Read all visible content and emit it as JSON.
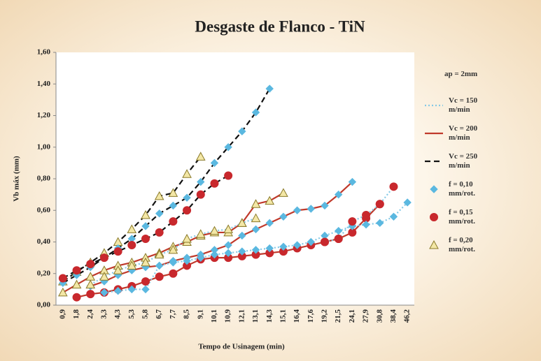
{
  "chart_data": {
    "type": "line",
    "title": "Desgaste de Flanco - TiN",
    "x_label": "Tempo de Usinagem (min)",
    "y_label": "Vb máx (mm)",
    "categories": [
      "0,9",
      "1,8",
      "2,4",
      "3,3",
      "4,3",
      "5,3",
      "5,8",
      "6,7",
      "7,7",
      "8,5",
      "9,1",
      "10,1",
      "10,9",
      "12,1",
      "13,1",
      "14,3",
      "15,1",
      "16,4",
      "17,6",
      "19,2",
      "21,5",
      "24,1",
      "27,9",
      "30,8",
      "38,4",
      "46,2"
    ],
    "ylim": [
      0,
      1.6
    ],
    "yticks": [
      {
        "value": 0,
        "label": "0,00"
      },
      {
        "value": 0.2,
        "label": "0,20"
      },
      {
        "value": 0.4,
        "label": "0,40"
      },
      {
        "value": 0.6,
        "label": "0,60"
      },
      {
        "value": 0.8,
        "label": "0,80"
      },
      {
        "value": 1.0,
        "label": "1,00"
      },
      {
        "value": 1.2,
        "label": "1,20"
      },
      {
        "value": 1.4,
        "label": "1,40"
      },
      {
        "value": 1.6,
        "label": "1,60"
      }
    ],
    "legend_title": "ap = 2mm",
    "legend_position": "right",
    "legend": [
      {
        "name": "Vc = 150 m/min",
        "line": "dotted",
        "color": "#86c9e6"
      },
      {
        "name": "Vc = 200 m/min",
        "line": "solid",
        "color": "#c0392b"
      },
      {
        "name": "Vc = 250 m/min",
        "line": "dashed",
        "color": "#111111"
      },
      {
        "name": "f = 0,10 mm/rot.",
        "marker": "diamond",
        "color": "#5bb8e0"
      },
      {
        "name": "f = 0,15 mm/rot.",
        "marker": "circle",
        "color": "#c8282d"
      },
      {
        "name": "f = 0,20 mm/rot.",
        "marker": "triangle",
        "color": "#f3e7a6"
      }
    ],
    "curves": [
      {
        "line": 2,
        "marker": 5,
        "values": [
          0.15,
          0.21,
          0.27,
          0.33,
          0.4,
          0.48,
          0.57,
          0.69,
          0.71,
          0.83,
          0.94,
          null,
          null,
          null,
          null,
          null,
          null,
          null,
          null,
          null,
          null,
          null,
          null,
          null,
          null,
          null
        ]
      },
      {
        "line": 2,
        "marker": 3,
        "values": [
          0.14,
          0.19,
          0.24,
          0.3,
          0.36,
          0.42,
          0.5,
          0.58,
          0.63,
          0.68,
          0.78,
          0.9,
          1.0,
          1.1,
          1.22,
          1.37,
          null,
          null,
          null,
          null,
          null,
          null,
          null,
          null,
          null,
          null
        ]
      },
      {
        "line": 2,
        "marker": 4,
        "values": [
          0.17,
          0.22,
          0.26,
          0.3,
          0.34,
          0.38,
          0.42,
          0.46,
          0.53,
          0.6,
          0.7,
          0.77,
          0.82,
          null,
          null,
          null,
          null,
          null,
          null,
          null,
          null,
          null,
          null,
          null,
          null,
          null
        ]
      },
      {
        "line": 1,
        "marker": 5,
        "values": [
          0.08,
          0.13,
          0.18,
          0.22,
          0.25,
          0.27,
          0.3,
          0.33,
          0.37,
          0.4,
          0.44,
          0.46,
          0.46,
          0.52,
          0.64,
          0.66,
          0.71,
          null,
          null,
          null,
          null,
          null,
          null,
          null,
          null,
          null
        ]
      },
      {
        "line": 1,
        "marker": 3,
        "values": [
          null,
          null,
          0.12,
          0.15,
          0.19,
          0.22,
          0.24,
          0.25,
          0.28,
          0.3,
          0.32,
          0.35,
          0.38,
          0.44,
          0.48,
          0.52,
          0.56,
          0.6,
          0.61,
          0.63,
          0.7,
          0.78,
          null,
          null,
          null,
          null
        ]
      },
      {
        "line": 1,
        "marker": 4,
        "values": [
          null,
          0.05,
          0.07,
          0.08,
          0.1,
          0.12,
          0.15,
          0.18,
          0.2,
          0.25,
          0.29,
          0.3,
          0.3,
          0.31,
          0.32,
          0.33,
          0.34,
          0.36,
          0.38,
          0.4,
          0.42,
          0.46,
          0.55,
          0.64,
          null,
          null
        ]
      },
      {
        "line": 0,
        "marker": 3,
        "values": [
          null,
          null,
          null,
          0.08,
          0.09,
          0.1,
          0.1,
          0.25,
          0.27,
          0.28,
          0.3,
          0.32,
          0.33,
          0.34,
          0.35,
          0.36,
          0.37,
          0.38,
          0.4,
          0.44,
          0.47,
          0.5,
          0.51,
          0.52,
          0.56,
          0.65
        ]
      },
      {
        "line": 0,
        "marker": 4,
        "values": [
          null,
          null,
          null,
          null,
          null,
          null,
          null,
          null,
          null,
          null,
          null,
          null,
          null,
          null,
          null,
          null,
          null,
          null,
          null,
          0.4,
          0.42,
          0.53,
          0.57,
          0.64,
          0.75,
          null
        ]
      },
      {
        "line": 0,
        "marker": 5,
        "values": [
          null,
          null,
          0.13,
          0.18,
          0.22,
          0.25,
          0.27,
          0.32,
          0.35,
          0.42,
          0.45,
          0.47,
          0.48,
          0.52,
          0.55,
          null,
          null,
          null,
          null,
          null,
          null,
          null,
          null,
          null,
          null,
          null
        ]
      }
    ]
  }
}
